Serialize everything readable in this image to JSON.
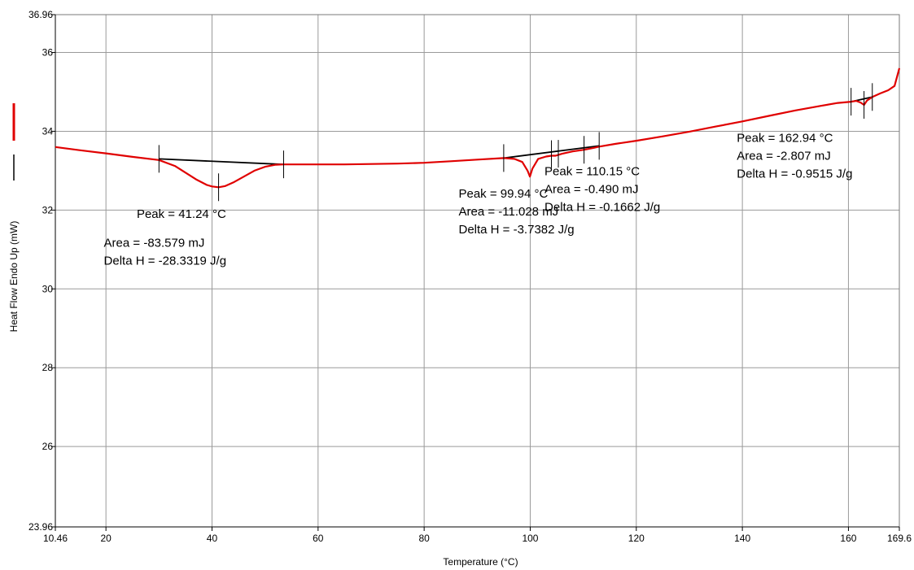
{
  "colors": {
    "series": "#e00000",
    "baseline": "#000000",
    "grid": "#9a9a9a"
  },
  "chart_data": {
    "type": "line",
    "xlabel": "Temperature (°C)",
    "ylabel": "Heat Flow Endo Up (mW)",
    "xlim": [
      10.46,
      169.6
    ],
    "ylim": [
      23.96,
      36.96
    ],
    "x_ticks": [
      {
        "value": 10.46,
        "label": "10.46"
      },
      {
        "value": 20,
        "label": "20"
      },
      {
        "value": 40,
        "label": "40"
      },
      {
        "value": 60,
        "label": "60"
      },
      {
        "value": 80,
        "label": "80"
      },
      {
        "value": 100,
        "label": "100"
      },
      {
        "value": 120,
        "label": "120"
      },
      {
        "value": 140,
        "label": "140"
      },
      {
        "value": 160,
        "label": "160"
      },
      {
        "value": 169.6,
        "label": "169.6"
      }
    ],
    "y_ticks": [
      {
        "value": 23.96,
        "label": "23.96"
      },
      {
        "value": 26,
        "label": "26"
      },
      {
        "value": 28,
        "label": "28"
      },
      {
        "value": 30,
        "label": "30"
      },
      {
        "value": 32,
        "label": "32"
      },
      {
        "value": 34,
        "label": "34"
      },
      {
        "value": 36,
        "label": "36"
      },
      {
        "value": 36.96,
        "label": "36.96"
      }
    ],
    "grid": true,
    "series": [
      {
        "x": [
          10.46,
          15,
          20,
          25,
          30,
          33,
          35,
          37,
          39,
          40,
          41.24,
          42.5,
          44,
          46,
          48,
          50,
          52,
          53.5,
          58,
          65,
          70,
          75,
          80,
          85,
          90,
          95,
          97,
          98.5,
          99.5,
          99.94,
          100.4,
          101.5,
          103,
          104,
          104.8,
          106,
          108,
          110.15,
          112,
          113,
          116,
          120,
          125,
          130,
          135,
          140,
          145,
          150,
          155,
          158,
          160.5,
          161.5,
          162.3,
          162.94,
          163.5,
          164.5,
          166,
          167.5,
          168.7,
          169.2,
          169.6
        ],
        "y": [
          33.6,
          33.52,
          33.44,
          33.35,
          33.27,
          33.12,
          32.95,
          32.78,
          32.64,
          32.6,
          32.58,
          32.61,
          32.7,
          32.85,
          33.0,
          33.1,
          33.15,
          33.16,
          33.16,
          33.16,
          33.17,
          33.18,
          33.2,
          33.24,
          33.28,
          33.32,
          33.3,
          33.22,
          33.0,
          32.85,
          33.05,
          33.3,
          33.36,
          33.38,
          33.38,
          33.43,
          33.49,
          33.53,
          33.58,
          33.61,
          33.68,
          33.76,
          33.87,
          33.99,
          34.12,
          34.25,
          34.39,
          34.53,
          34.65,
          34.72,
          34.75,
          34.77,
          34.73,
          34.67,
          34.78,
          34.87,
          34.96,
          35.04,
          35.15,
          35.4,
          35.6
        ]
      }
    ],
    "baselines": [
      {
        "x": [
          30,
          53.5
        ],
        "y": [
          33.3,
          33.16
        ]
      },
      {
        "x": [
          95,
          113
        ],
        "y": [
          33.32,
          33.63
        ]
      },
      {
        "x": [
          160.5,
          164.5
        ],
        "y": [
          34.75,
          34.87
        ]
      }
    ],
    "markers": [
      {
        "x": 30,
        "y": 33.3
      },
      {
        "x": 41.24,
        "y": 32.58
      },
      {
        "x": 53.5,
        "y": 33.16
      },
      {
        "x": 95,
        "y": 33.32
      },
      {
        "x": 104,
        "y": 33.42
      },
      {
        "x": 105.3,
        "y": 33.43
      },
      {
        "x": 110.15,
        "y": 33.53
      },
      {
        "x": 113,
        "y": 33.63
      },
      {
        "x": 160.5,
        "y": 34.75
      },
      {
        "x": 162.94,
        "y": 34.67
      },
      {
        "x": 164.5,
        "y": 34.87
      }
    ],
    "annotations": [
      {
        "lines": [
          "Peak = 41.24 °C"
        ],
        "x": 25.8,
        "y": 31.8
      },
      {
        "lines": [
          "Area = -83.579 mJ",
          "Delta H = -28.3319 J/g"
        ],
        "x": 19.6,
        "y": 31.07
      },
      {
        "lines": [
          "Peak = 99.94 °C",
          "Area = -11.028 mJ",
          "Delta H = -3.7382 J/g"
        ],
        "x": 86.5,
        "y": 32.32
      },
      {
        "lines": [
          "Peak = 110.15 °C",
          "Area = -0.490 mJ",
          "Delta H = -0.1662 J/g"
        ],
        "x": 102.7,
        "y": 32.88
      },
      {
        "lines": [
          "Peak = 162.94 °C",
          "Area = -2.807 mJ",
          "Delta H = -0.9515 J/g"
        ],
        "x": 138.95,
        "y": 33.73
      }
    ]
  }
}
